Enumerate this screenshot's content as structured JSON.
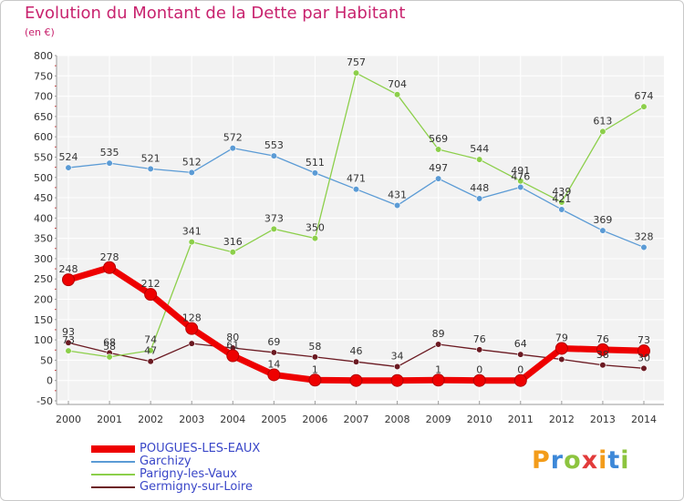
{
  "header": {
    "title": "Evolution du Montant de la Dette par Habitant",
    "subtitle": "(en €)"
  },
  "brand": {
    "letters": [
      "P",
      "r",
      "o",
      "x",
      "i",
      "t",
      "i"
    ],
    "colors": [
      "#f39c1a",
      "#3d88d8",
      "#8dc43f",
      "#e23b3b",
      "#f39c1a",
      "#3d88d8",
      "#8dc43f"
    ]
  },
  "chart_data": {
    "type": "line",
    "title": "Evolution du Montant de la Dette par Habitant",
    "ylabel": "(en €)",
    "xlabel": "",
    "categories": [
      "2000",
      "2001",
      "2002",
      "2003",
      "2004",
      "2005",
      "2006",
      "2007",
      "2008",
      "2009",
      "2010",
      "2011",
      "2012",
      "2013",
      "2014"
    ],
    "ylim": [
      -50,
      800
    ],
    "yticks": [
      -50,
      0,
      50,
      100,
      150,
      200,
      250,
      300,
      350,
      400,
      450,
      500,
      550,
      600,
      650,
      700,
      750,
      800
    ],
    "grid": true,
    "legend_position": "bottom",
    "series": [
      {
        "name": "Germigny-sur-Loire",
        "color": "#6b1a22",
        "values": [
          93,
          68,
          47,
          91,
          80,
          69,
          58,
          46,
          34,
          89,
          76,
          64,
          52,
          38,
          30
        ],
        "labels": [
          "93",
          "68",
          "47",
          "",
          "80",
          "69",
          "58",
          "46",
          "34",
          "89",
          "76",
          "64",
          "",
          "38",
          "30"
        ]
      },
      {
        "name": "Garchizy",
        "color": "#5b9bd5",
        "values": [
          524,
          535,
          521,
          512,
          572,
          553,
          511,
          471,
          431,
          497,
          448,
          476,
          421,
          369,
          328
        ],
        "labels": [
          "524",
          "535",
          "521",
          "512",
          "572",
          "553",
          "511",
          "471",
          "431",
          "497",
          "448",
          "476",
          "421",
          "369",
          "328"
        ]
      },
      {
        "name": "Parigny-les-Vaux",
        "color": "#8ccf4a",
        "values": [
          73,
          58,
          74,
          341,
          316,
          373,
          350,
          757,
          704,
          569,
          544,
          491,
          439,
          613,
          674
        ],
        "labels": [
          "73",
          "58",
          "74",
          "341",
          "316",
          "373",
          "350",
          "757",
          "704",
          "569",
          "544",
          "491",
          "439",
          "613",
          "674"
        ]
      },
      {
        "name": "POUGUES-LES-EAUX",
        "color": "#ee0000",
        "values": [
          248,
          278,
          212,
          128,
          61,
          14,
          1,
          0,
          0,
          1,
          0,
          0,
          79,
          76,
          73
        ],
        "labels": [
          "248",
          "278",
          "212",
          "128",
          "61",
          "14",
          "1",
          "",
          "",
          "1",
          "0",
          "0",
          "79",
          "76",
          "73"
        ]
      }
    ],
    "legend_order": [
      "POUGUES-LES-EAUX",
      "Garchizy",
      "Parigny-les-Vaux",
      "Germigny-sur-Loire"
    ]
  }
}
